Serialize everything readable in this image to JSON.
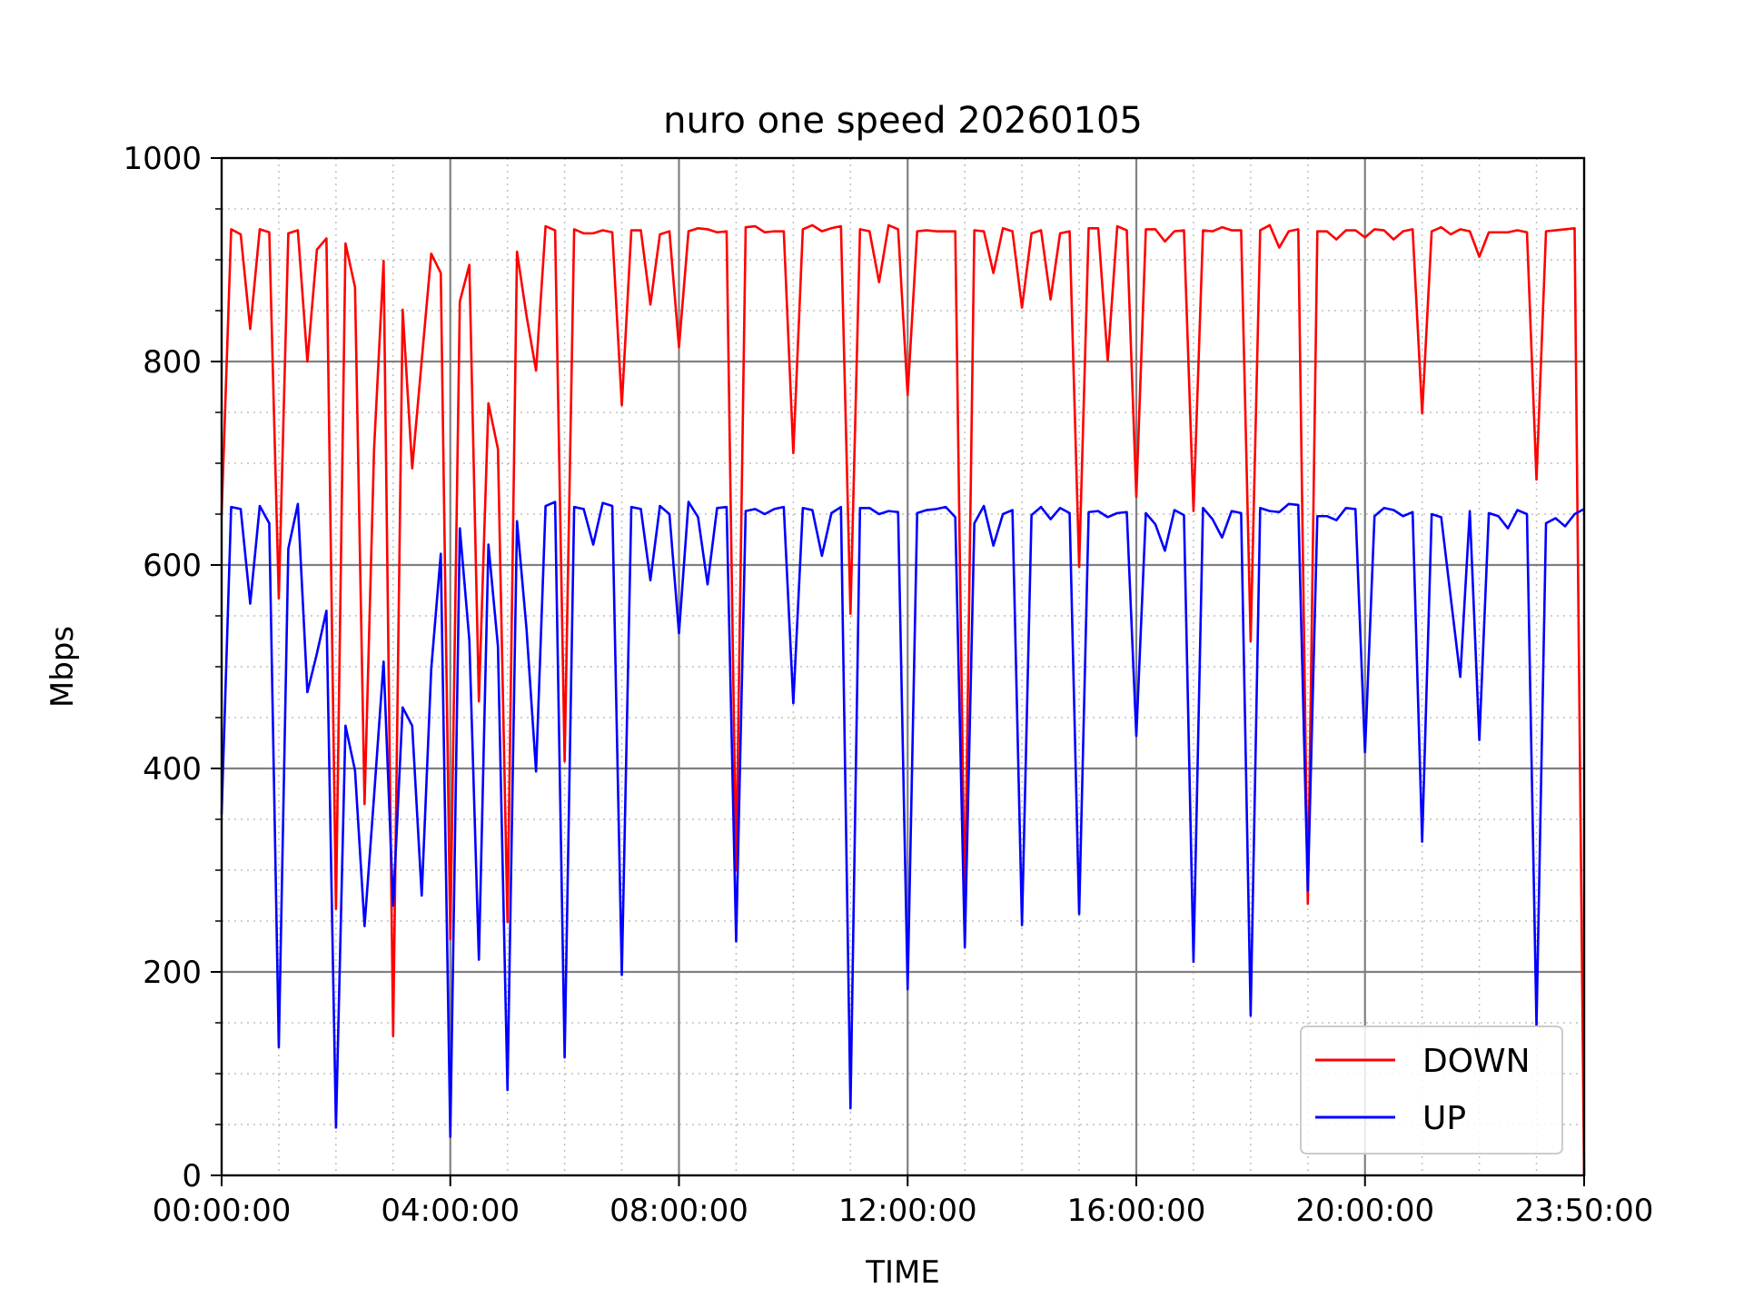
{
  "chart_data": {
    "type": "line",
    "title": "nuro one speed 20260105",
    "xlabel": "TIME",
    "ylabel": "Mbps",
    "ylim": [
      0,
      1000
    ],
    "yticks": [
      0,
      200,
      400,
      600,
      800,
      1000
    ],
    "xlim": [
      "00:00:00",
      "23:50:00"
    ],
    "xticks": [
      "00:00:00",
      "04:00:00",
      "08:00:00",
      "12:00:00",
      "16:00:00",
      "20:00:00",
      "23:50:00"
    ],
    "x_interval": "00:10:00",
    "grid": "major solid, minor dotted",
    "legend_position": "lower-right",
    "series": [
      {
        "name": "DOWN",
        "color": "#ff0000",
        "values": [
          650,
          930,
          925,
          832,
          930,
          927,
          567,
          926,
          929,
          800,
          910,
          921,
          262,
          916,
          873,
          365,
          714,
          899,
          137,
          851,
          695,
          801,
          906,
          887,
          232,
          859,
          895,
          466,
          759,
          714,
          249,
          908,
          845,
          791,
          933,
          929,
          407,
          930,
          926,
          926,
          929,
          927,
          757,
          929,
          929,
          856,
          925,
          928,
          814,
          928,
          931,
          930,
          927,
          928,
          300,
          932,
          933,
          927,
          928,
          928,
          710,
          930,
          934,
          928,
          931,
          933,
          552,
          930,
          928,
          878,
          934,
          930,
          767,
          928,
          929,
          928,
          928,
          928,
          260,
          929,
          928,
          887,
          931,
          928,
          853,
          926,
          929,
          861,
          926,
          928,
          598,
          931,
          931,
          801,
          933,
          929,
          667,
          930,
          930,
          918,
          928,
          929,
          653,
          929,
          928,
          932,
          929,
          929,
          525,
          929,
          934,
          912,
          928,
          930,
          267,
          928,
          928,
          920,
          929,
          929,
          922,
          930,
          929,
          920,
          928,
          930,
          749,
          928,
          932,
          925,
          930,
          928,
          903,
          927,
          927,
          927,
          929,
          927,
          684,
          928,
          929,
          930,
          931,
          0
        ]
      },
      {
        "name": "UP",
        "color": "#0000ff",
        "values": [
          355,
          657,
          655,
          562,
          658,
          641,
          126,
          616,
          660,
          475,
          513,
          555,
          47,
          442,
          398,
          245,
          373,
          505,
          265,
          460,
          442,
          275,
          498,
          611,
          38,
          636,
          526,
          212,
          620,
          520,
          84,
          643,
          537,
          397,
          658,
          662,
          116,
          657,
          655,
          620,
          661,
          658,
          197,
          657,
          655,
          585,
          658,
          650,
          533,
          662,
          647,
          581,
          656,
          657,
          230,
          653,
          655,
          650,
          655,
          657,
          464,
          656,
          654,
          609,
          651,
          657,
          66,
          656,
          656,
          650,
          653,
          652,
          183,
          651,
          654,
          655,
          657,
          647,
          224,
          641,
          658,
          619,
          650,
          654,
          246,
          649,
          657,
          645,
          656,
          651,
          257,
          652,
          653,
          647,
          651,
          652,
          432,
          651,
          640,
          614,
          654,
          649,
          210,
          656,
          645,
          627,
          653,
          651,
          157,
          656,
          653,
          652,
          660,
          659,
          280,
          648,
          648,
          644,
          656,
          655,
          416,
          648,
          656,
          654,
          648,
          652,
          328,
          650,
          647,
          568,
          490,
          653,
          428,
          651,
          648,
          636,
          654,
          650,
          147,
          641,
          646,
          638,
          650,
          655
        ]
      }
    ]
  }
}
